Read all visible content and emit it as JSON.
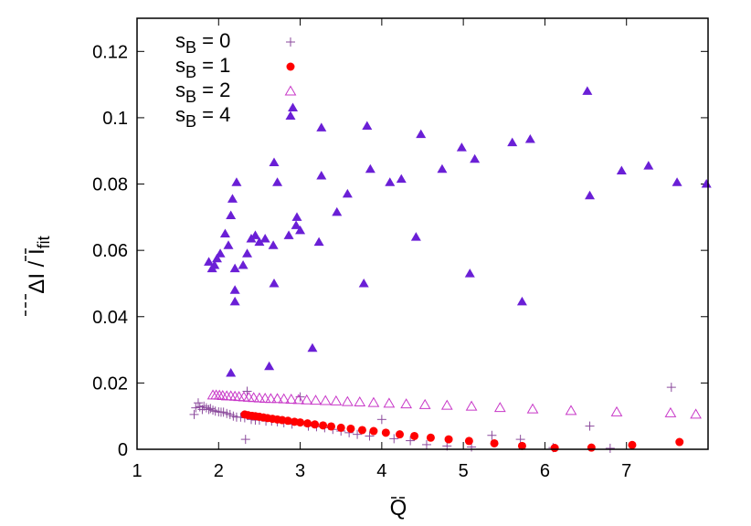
{
  "chart_data": {
    "type": "scatter",
    "title": "",
    "xlabel": "Q",
    "ylabel": "ΔI / I",
    "ylabel_subscript": "fit",
    "xlim": [
      1,
      8
    ],
    "ylim": [
      0,
      0.13
    ],
    "xticks": [
      1,
      2,
      3,
      4,
      5,
      6,
      7
    ],
    "yticks": [
      0,
      0.02,
      0.04,
      0.06,
      0.08,
      0.1,
      0.12
    ],
    "xtick_labels": [
      "1",
      "2",
      "3",
      "4",
      "5",
      "6",
      "7"
    ],
    "ytick_labels": [
      "0",
      "0.02",
      "0.04",
      "0.06",
      "0.08",
      "0.1",
      "0.12"
    ],
    "grid": false,
    "legend_position": "top-left",
    "series": [
      {
        "name": "s",
        "name_subscript": "B",
        "name_suffix": " = 0",
        "marker": "plus",
        "color": "#8b4a9c",
        "points": [
          [
            1.7,
            0.0105
          ],
          [
            1.72,
            0.0125
          ],
          [
            1.75,
            0.014
          ],
          [
            1.77,
            0.0128
          ],
          [
            1.8,
            0.012
          ],
          [
            1.82,
            0.013
          ],
          [
            1.85,
            0.0125
          ],
          [
            1.88,
            0.012
          ],
          [
            1.9,
            0.0123
          ],
          [
            1.93,
            0.0118
          ],
          [
            1.96,
            0.0115
          ],
          [
            2.0,
            0.0113
          ],
          [
            2.03,
            0.0112
          ],
          [
            2.06,
            0.0112
          ],
          [
            2.1,
            0.0108
          ],
          [
            2.14,
            0.0105
          ],
          [
            2.18,
            0.01
          ],
          [
            2.22,
            0.0097
          ],
          [
            2.27,
            0.0097
          ],
          [
            2.32,
            0.0095
          ],
          [
            2.33,
            0.003
          ],
          [
            2.35,
            0.0175
          ],
          [
            2.4,
            0.009
          ],
          [
            2.45,
            0.0088
          ],
          [
            2.5,
            0.0088
          ],
          [
            2.58,
            0.0085
          ],
          [
            2.65,
            0.0085
          ],
          [
            2.72,
            0.0083
          ],
          [
            2.8,
            0.008
          ],
          [
            2.9,
            0.0076
          ],
          [
            3.0,
            0.0158
          ],
          [
            3.1,
            0.007
          ],
          [
            3.2,
            0.0068
          ],
          [
            3.3,
            0.0065
          ],
          [
            3.4,
            0.006
          ],
          [
            3.5,
            0.0055
          ],
          [
            3.6,
            0.005
          ],
          [
            3.7,
            0.0045
          ],
          [
            3.85,
            0.004
          ],
          [
            4.0,
            0.009
          ],
          [
            4.15,
            0.0032
          ],
          [
            4.35,
            0.0026
          ],
          [
            4.55,
            0.0014
          ],
          [
            4.8,
            0.001
          ],
          [
            5.1,
            0.0007
          ],
          [
            5.35,
            0.0042
          ],
          [
            5.7,
            0.003
          ],
          [
            6.1,
            0.0005
          ],
          [
            6.55,
            0.007
          ],
          [
            6.8,
            0.0003
          ],
          [
            7.55,
            0.0187
          ]
        ]
      },
      {
        "name": "s",
        "name_subscript": "B",
        "name_suffix": " = 1",
        "marker": "circle",
        "color": "#ff0000",
        "points": [
          [
            2.32,
            0.0105
          ],
          [
            2.36,
            0.0103
          ],
          [
            2.41,
            0.0101
          ],
          [
            2.45,
            0.01
          ],
          [
            2.5,
            0.0098
          ],
          [
            2.55,
            0.0096
          ],
          [
            2.6,
            0.0094
          ],
          [
            2.66,
            0.0092
          ],
          [
            2.72,
            0.009
          ],
          [
            2.78,
            0.0088
          ],
          [
            2.85,
            0.0086
          ],
          [
            2.93,
            0.0083
          ],
          [
            3.0,
            0.0081
          ],
          [
            3.09,
            0.0078
          ],
          [
            3.18,
            0.0075
          ],
          [
            3.28,
            0.0072
          ],
          [
            3.38,
            0.0069
          ],
          [
            3.5,
            0.0065
          ],
          [
            3.62,
            0.0062
          ],
          [
            3.76,
            0.0058
          ],
          [
            3.9,
            0.0055
          ],
          [
            4.05,
            0.005
          ],
          [
            4.22,
            0.0045
          ],
          [
            4.4,
            0.004
          ],
          [
            4.6,
            0.0035
          ],
          [
            4.82,
            0.003
          ],
          [
            5.07,
            0.0025
          ],
          [
            5.38,
            0.0018
          ],
          [
            5.72,
            0.001
          ],
          [
            6.12,
            0.0004
          ],
          [
            6.57,
            0.0005
          ],
          [
            7.07,
            0.0013
          ],
          [
            7.65,
            0.0022
          ]
        ]
      },
      {
        "name": "s",
        "name_subscript": "B",
        "name_suffix": " = 2",
        "marker": "triangle-open",
        "color": "#c838c8",
        "points": [
          [
            1.93,
            0.0163
          ],
          [
            1.97,
            0.0163
          ],
          [
            2.01,
            0.0162
          ],
          [
            2.05,
            0.0161
          ],
          [
            2.1,
            0.016
          ],
          [
            2.15,
            0.016
          ],
          [
            2.2,
            0.0159
          ],
          [
            2.25,
            0.0158
          ],
          [
            2.31,
            0.0157
          ],
          [
            2.37,
            0.0156
          ],
          [
            2.43,
            0.0155
          ],
          [
            2.5,
            0.0154
          ],
          [
            2.57,
            0.0153
          ],
          [
            2.64,
            0.0152
          ],
          [
            2.72,
            0.0152
          ],
          [
            2.8,
            0.0151
          ],
          [
            2.89,
            0.015
          ],
          [
            2.98,
            0.0149
          ],
          [
            3.08,
            0.0148
          ],
          [
            3.19,
            0.0147
          ],
          [
            3.31,
            0.0146
          ],
          [
            3.44,
            0.0145
          ],
          [
            3.58,
            0.0143
          ],
          [
            3.73,
            0.0142
          ],
          [
            3.9,
            0.014
          ],
          [
            4.09,
            0.0138
          ],
          [
            4.3,
            0.0136
          ],
          [
            4.53,
            0.0134
          ],
          [
            4.8,
            0.0132
          ],
          [
            5.1,
            0.0129
          ],
          [
            5.45,
            0.0125
          ],
          [
            5.85,
            0.0121
          ],
          [
            6.32,
            0.0116
          ],
          [
            6.88,
            0.0112
          ],
          [
            7.54,
            0.0109
          ],
          [
            7.85,
            0.0105
          ]
        ]
      },
      {
        "name": "s",
        "name_subscript": "B",
        "name_suffix": " = 4",
        "marker": "triangle-filled",
        "color": "#6a1fd6",
        "points": [
          [
            1.88,
            0.0565
          ],
          [
            1.92,
            0.0545
          ],
          [
            1.95,
            0.0555
          ],
          [
            1.98,
            0.0575
          ],
          [
            2.02,
            0.059
          ],
          [
            2.08,
            0.065
          ],
          [
            2.12,
            0.0615
          ],
          [
            2.15,
            0.023
          ],
          [
            2.15,
            0.0705
          ],
          [
            2.17,
            0.0755
          ],
          [
            2.2,
            0.048
          ],
          [
            2.2,
            0.0445
          ],
          [
            2.2,
            0.0545
          ],
          [
            2.22,
            0.0805
          ],
          [
            2.3,
            0.0555
          ],
          [
            2.35,
            0.059
          ],
          [
            2.4,
            0.0635
          ],
          [
            2.45,
            0.0645
          ],
          [
            2.5,
            0.0625
          ],
          [
            2.57,
            0.0635
          ],
          [
            2.62,
            0.025
          ],
          [
            2.67,
            0.0615
          ],
          [
            2.68,
            0.05
          ],
          [
            2.68,
            0.0865
          ],
          [
            2.72,
            0.0805
          ],
          [
            2.86,
            0.0645
          ],
          [
            2.91,
            0.103
          ],
          [
            2.95,
            0.0675
          ],
          [
            2.96,
            0.07
          ],
          [
            3.0,
            0.066
          ],
          [
            3.15,
            0.0305
          ],
          [
            3.23,
            0.0625
          ],
          [
            3.26,
            0.097
          ],
          [
            3.26,
            0.0825
          ],
          [
            3.45,
            0.0715
          ],
          [
            3.58,
            0.077
          ],
          [
            3.78,
            0.05
          ],
          [
            3.82,
            0.0975
          ],
          [
            3.86,
            0.0845
          ],
          [
            4.1,
            0.0805
          ],
          [
            4.24,
            0.0815
          ],
          [
            4.42,
            0.064
          ],
          [
            4.48,
            0.095
          ],
          [
            4.74,
            0.0845
          ],
          [
            4.98,
            0.091
          ],
          [
            5.08,
            0.053
          ],
          [
            5.14,
            0.0875
          ],
          [
            5.6,
            0.0925
          ],
          [
            5.72,
            0.0445
          ],
          [
            5.82,
            0.0935
          ],
          [
            6.52,
            0.108
          ],
          [
            6.55,
            0.0765
          ],
          [
            6.94,
            0.084
          ],
          [
            7.27,
            0.0855
          ],
          [
            7.62,
            0.0805
          ],
          [
            7.98,
            0.08
          ]
        ]
      }
    ]
  }
}
